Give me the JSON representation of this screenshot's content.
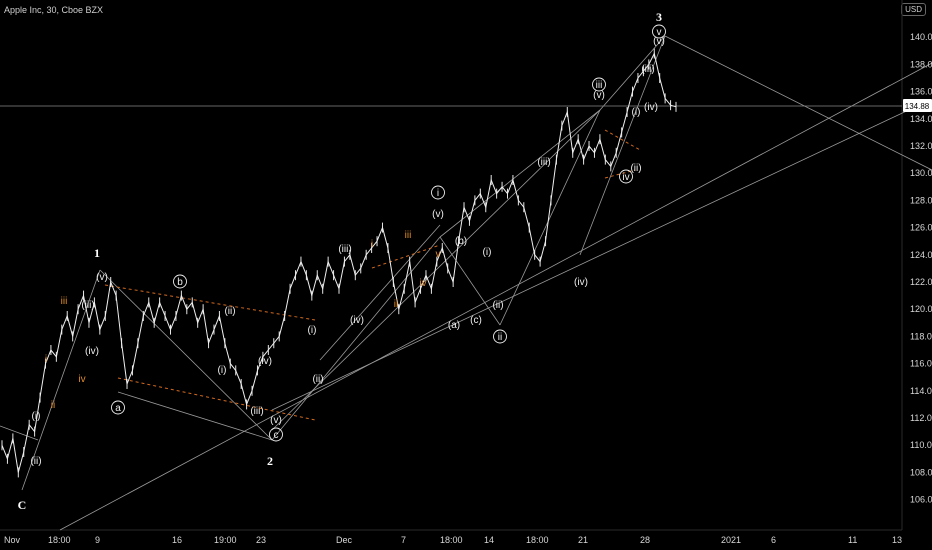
{
  "header": {
    "symbol": "Apple Inc, 30, Cboe BZX",
    "currency": "USD"
  },
  "chart_data": {
    "type": "line",
    "title": "Apple Inc, 30, Cboe BZX",
    "x_ticks": [
      "Nov",
      "18:00",
      "9",
      "16",
      "19:00",
      "23",
      "Dec",
      "7",
      "18:00",
      "14",
      "18:00",
      "21",
      "28",
      "2021",
      "6",
      "11",
      "13"
    ],
    "y_ticks": [
      "106.00",
      "108.00",
      "110.00",
      "112.00",
      "114.00",
      "116.00",
      "118.00",
      "120.00",
      "122.00",
      "124.00",
      "126.00",
      "128.00",
      "130.00",
      "132.00",
      "134.00",
      "136.00",
      "138.00",
      "140.00"
    ],
    "ylim": [
      104.5,
      142
    ],
    "current_price": "134.88",
    "series": [
      {
        "values": [
          110,
          109,
          110.5,
          108,
          109.5,
          111.5,
          111,
          113.5,
          116,
          117,
          116.5,
          118.5,
          119.5,
          118,
          120,
          121,
          119,
          120.5,
          118.5,
          119.5,
          122,
          121,
          117.5,
          114.5,
          115.5,
          117.5,
          119.5,
          120.5,
          119,
          120.5,
          119.5,
          118.5,
          119.5,
          121,
          120,
          120.5,
          119,
          120,
          117.5,
          118.5,
          119.5,
          117.5,
          116,
          115.5,
          114.5,
          113,
          114,
          115.5,
          116.5,
          117,
          117.5,
          118,
          119.5,
          121.5,
          122.5,
          123.5,
          122.5,
          121,
          122.5,
          121.5,
          123.5,
          122.5,
          121.5,
          123.5,
          124,
          122.5,
          123,
          124,
          124.5,
          125,
          126,
          124.5,
          122,
          120,
          121.5,
          123.5,
          120.5,
          121.5,
          122.5,
          121.5,
          123.5,
          124.5,
          123,
          122,
          125,
          127.5,
          126.5,
          128,
          128.5,
          127.5,
          129.5,
          128.5,
          129,
          128.5,
          129.5,
          128,
          127.5,
          126,
          124,
          123.5,
          125,
          128,
          131,
          133.5,
          134.5,
          131.5,
          132.5,
          131,
          132,
          131.5,
          132.5,
          131,
          130.5,
          131.5,
          133,
          134.5,
          136,
          137,
          137.5,
          138,
          138.8,
          137,
          135.5,
          135,
          134.88
        ]
      }
    ],
    "wave_labels": [
      "1",
      "2",
      "3",
      "C",
      "(i)",
      "(ii)",
      "(iii)",
      "(iv)",
      "(v)",
      "a",
      "b",
      "c",
      "(a)",
      "(b)",
      "(c)",
      "i",
      "ii",
      "iii",
      "iv",
      "v"
    ],
    "grid": false,
    "legend": "none"
  }
}
